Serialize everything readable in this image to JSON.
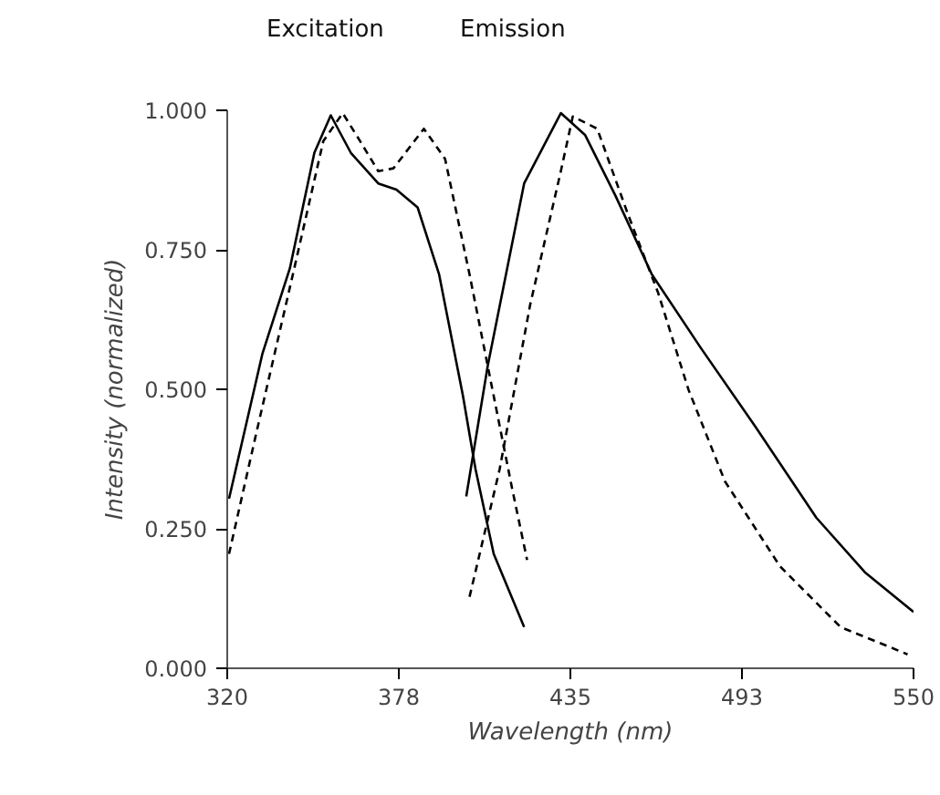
{
  "chart_data": {
    "type": "line",
    "xlabel": "Wavelength (nm)",
    "ylabel": "Intensity (normalized)",
    "annotations": [
      "Excitation",
      "Emission"
    ],
    "xlim": [
      320,
      550
    ],
    "ylim": [
      0,
      1
    ],
    "xticks": [
      320,
      {
        "value": 377.5,
        "label": "378"
      },
      435,
      {
        "value": 492.5,
        "label": "493"
      },
      550
    ],
    "yticks": [
      {
        "value": 0,
        "label": "0.000"
      },
      {
        "value": 0.25,
        "label": "0.250"
      },
      {
        "value": 0.5,
        "label": "0.500"
      },
      {
        "value": 0.75,
        "label": "0.750"
      },
      {
        "value": 1,
        "label": "1.000"
      }
    ],
    "grid": false,
    "marker": "none",
    "series": [
      {
        "color": "#000000",
        "line_style": "solid",
        "x": [
          320.6,
          331.8,
          341,
          349.2,
          354.7,
          361.4,
          370.6,
          376.7,
          383.8,
          391,
          399,
          403.2,
          409.3,
          419.5
        ],
        "values": [
          0.304,
          0.564,
          0.717,
          0.924,
          0.991,
          0.924,
          0.869,
          0.858,
          0.826,
          0.706,
          0.488,
          0.357,
          0.205,
          0.074
        ]
      },
      {
        "color": "#000000",
        "line_style": "dashed",
        "x": [
          320.6,
          329.8,
          342,
          352.2,
          358.7,
          364.5,
          370.6,
          375.7,
          385.9,
          393,
          401.2,
          409.3,
          415.4,
          420.5
        ],
        "values": [
          0.205,
          0.423,
          0.706,
          0.945,
          0.995,
          0.945,
          0.891,
          0.896,
          0.967,
          0.913,
          0.706,
          0.488,
          0.324,
          0.194
        ]
      },
      {
        "color": "#000000",
        "line_style": "solid",
        "x": [
          400.1,
          407.3,
          419.5,
          431.8,
          439.9,
          450.1,
          462.3,
          478.6,
          497,
          517.4,
          533.7,
          550
        ],
        "values": [
          0.308,
          0.542,
          0.869,
          0.995,
          0.956,
          0.847,
          0.706,
          0.575,
          0.433,
          0.27,
          0.172,
          0.101
        ]
      },
      {
        "color": "#000000",
        "line_style": "dashed",
        "x": [
          401.2,
          411.3,
          421.5,
          431.8,
          435.8,
          444,
          454.2,
          464.4,
          474.6,
          486.8,
          505.2,
          525.5,
          548
        ],
        "values": [
          0.128,
          0.357,
          0.651,
          0.891,
          0.989,
          0.967,
          0.815,
          0.673,
          0.499,
          0.335,
          0.183,
          0.074,
          0.025
        ]
      }
    ]
  }
}
